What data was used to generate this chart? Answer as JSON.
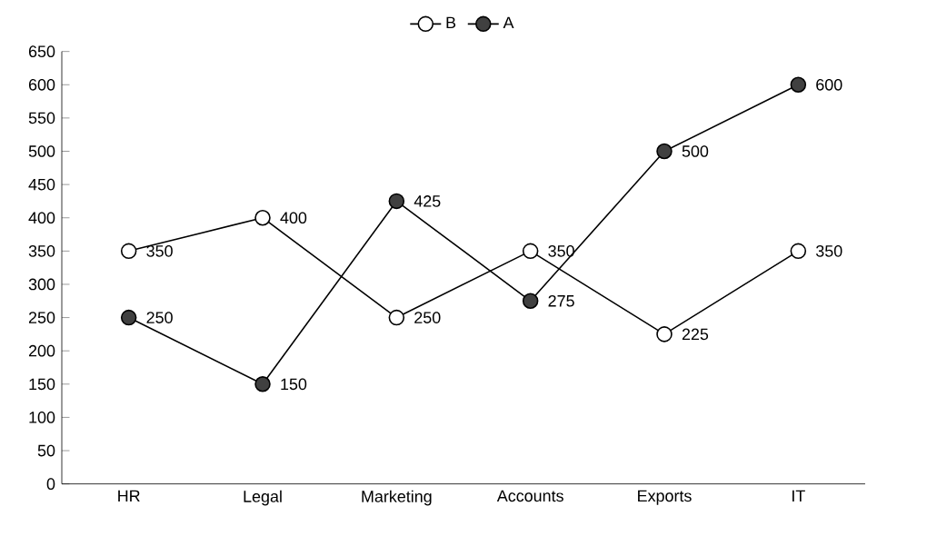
{
  "chart_data": {
    "type": "line",
    "categories": [
      "HR",
      "Legal",
      "Marketing",
      "Accounts",
      "Exports",
      "IT"
    ],
    "series": [
      {
        "name": "B",
        "color": "#ffffff",
        "values": [
          350,
          400,
          250,
          350,
          225,
          350
        ]
      },
      {
        "name": "A",
        "color": "#404040",
        "values": [
          250,
          150,
          425,
          275,
          500,
          600
        ]
      }
    ],
    "ylim": [
      0,
      650
    ],
    "yticks": [
      0,
      50,
      100,
      150,
      200,
      250,
      300,
      350,
      400,
      450,
      500,
      550,
      600,
      650
    ],
    "data_labels": true,
    "legend": "top",
    "marker": "circle",
    "line_style": "solid",
    "grid": false
  }
}
